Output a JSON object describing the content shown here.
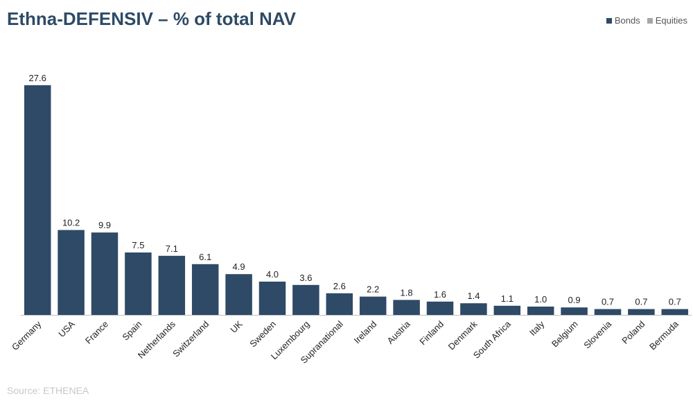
{
  "chart_data": {
    "type": "bar",
    "title": "Ethna-DEFENSIV – % of total NAV",
    "categories": [
      "Germany",
      "USA",
      "France",
      "Spain",
      "Netherlands",
      "Switzerland",
      "UK",
      "Sweden",
      "Luxembourg",
      "Supranational",
      "Ireland",
      "Austria",
      "Finland",
      "Denmark",
      "South Africa",
      "Italy",
      "Belgium",
      "Slovenia",
      "Poland",
      "Bermuda"
    ],
    "series": [
      {
        "name": "Bonds",
        "color": "#2e4a66",
        "values": [
          27.6,
          10.2,
          9.9,
          7.5,
          7.1,
          6.1,
          4.9,
          4.0,
          3.6,
          2.6,
          2.2,
          1.8,
          1.6,
          1.4,
          1.1,
          1.0,
          0.9,
          0.7,
          0.7,
          0.7
        ]
      },
      {
        "name": "Equities",
        "color": "#a6a6a6",
        "values": [
          0,
          0,
          0,
          0,
          0,
          0,
          0,
          0,
          0,
          0,
          0,
          0,
          0,
          0,
          0,
          0,
          0,
          0,
          0,
          0
        ]
      }
    ],
    "data_labels": [
      "27.6",
      "10.2",
      "9.9",
      "7.5",
      "7.1",
      "6.1",
      "4.9",
      "4.0",
      "3.6",
      "2.6",
      "2.2",
      "1.8",
      "1.6",
      "1.4",
      "1.1",
      "1.0",
      "0.9",
      "0.7",
      "0.7",
      "0.7"
    ],
    "ylim": [
      0,
      30
    ],
    "grid": false,
    "legend": "top-right",
    "source": "Source: ETHENEA"
  }
}
